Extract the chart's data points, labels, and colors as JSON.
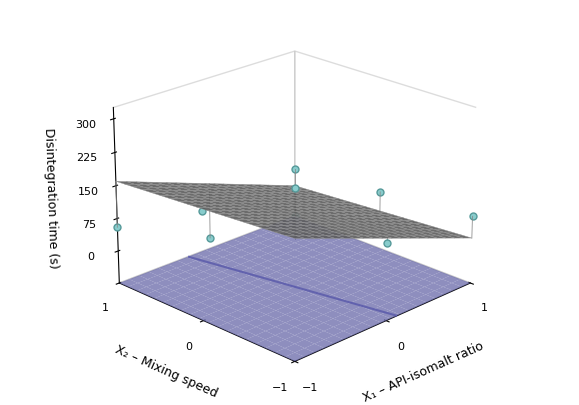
{
  "title": "",
  "ylabel": "Disintegration time (s)",
  "xlabel1": "X₁ – API-isomalt ratio",
  "xlabel2": "X₂ – Mixing speed",
  "yticks": [
    0,
    75,
    150,
    225,
    300
  ],
  "zlim": [
    -75,
    325
  ],
  "surface_color": "#efefef",
  "surface_edge_color": "#999999",
  "base_color": "#8888dd",
  "base_alpha": 0.75,
  "scatter_color": "#88cccc",
  "scatter_edgecolor": "#559999",
  "coeffs": [
    95.0,
    -80.0,
    -15.0,
    0.0,
    0.0,
    0.0
  ],
  "data_points": [
    [
      -1,
      -1,
      295
    ],
    [
      -1,
      0,
      170
    ],
    [
      -1,
      1,
      55
    ],
    [
      0,
      -1,
      100
    ],
    [
      0,
      0,
      80
    ],
    [
      0,
      1,
      -50
    ],
    [
      1,
      -1,
      80
    ],
    [
      1,
      0,
      60
    ],
    [
      1,
      1,
      40
    ]
  ],
  "elev": 22,
  "azim": -135,
  "figsize": [
    5.79,
    4.06
  ],
  "dpi": 100
}
